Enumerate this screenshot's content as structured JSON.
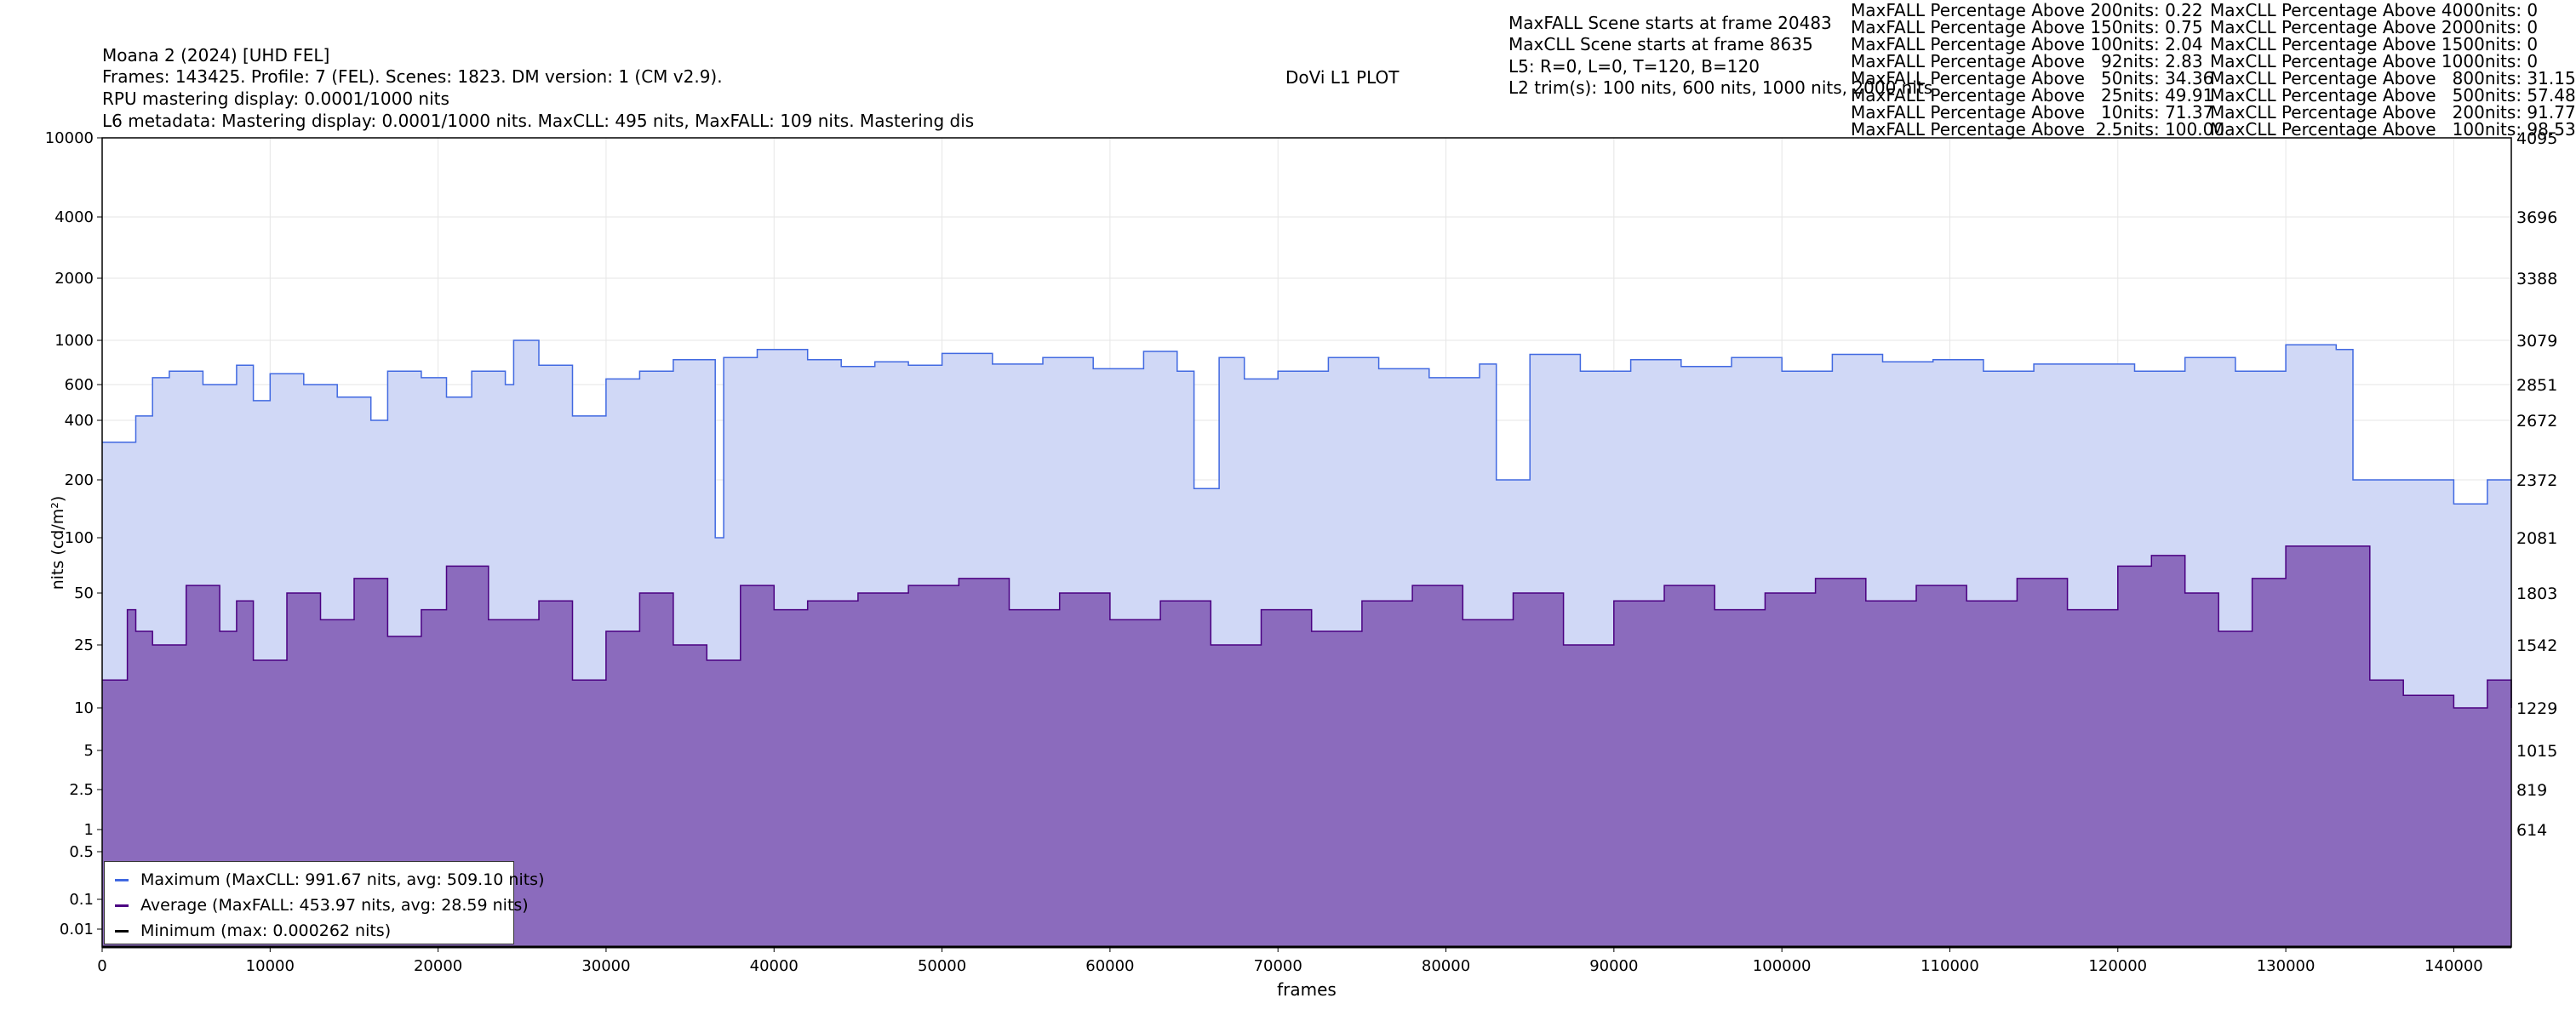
{
  "header": {
    "title": "Moana 2 (2024) [UHD FEL]",
    "info": "Frames: 143425. Profile: 7 (FEL). Scenes: 1823. DM version: 1 (CM v2.9).",
    "rpu_mastering": "RPU mastering display: 0.0001/1000 nits",
    "l6_metadata": "L6 metadata: Mastering display: 0.0001/1000 nits. MaxCLL: 495 nits, MaxFALL: 109 nits. Mastering dis",
    "plot_title": "DoVi L1 PLOT",
    "maxfall_scene": "MaxFALL Scene starts at frame 20483",
    "maxcll_scene": "MaxCLL Scene starts at frame 8635",
    "l5": "L5: R=0, L=0, T=120, B=120",
    "l2_trims": "L2 trim(s): 100 nits, 600 nits, 1000 nits, 2000 nits"
  },
  "maxfall_percentages": [
    "MaxFALL Percentage Above 200nits: 0.22",
    "MaxFALL Percentage Above 150nits: 0.75",
    "MaxFALL Percentage Above 100nits: 2.04",
    "MaxFALL Percentage Above   92nits: 2.83",
    "MaxFALL Percentage Above   50nits: 34.36",
    "MaxFALL Percentage Above   25nits: 49.91",
    "MaxFALL Percentage Above   10nits: 71.37",
    "MaxFALL Percentage Above  2.5nits: 100.00"
  ],
  "maxcll_percentages": [
    "MaxCLL Percentage Above 4000nits: 0",
    "MaxCLL Percentage Above 2000nits: 0",
    "MaxCLL Percentage Above 1500nits: 0",
    "MaxCLL Percentage Above 1000nits: 0",
    "MaxCLL Percentage Above   800nits: 31.15",
    "MaxCLL Percentage Above   500nits: 57.48",
    "MaxCLL Percentage Above   200nits: 91.77",
    "MaxCLL Percentage Above   100nits: 98.53"
  ],
  "legend": {
    "maximum": "Maximum (MaxCLL: 991.67 nits, avg: 509.10 nits)",
    "average": "Average (MaxFALL: 453.97 nits, avg: 28.59 nits)",
    "minimum": "Minimum (max: 0.000262 nits)"
  },
  "colors": {
    "maximum_line": "#4169e1",
    "maximum_fill": "#d0d8f6",
    "average_line": "#4b0082",
    "average_fill": "#8b6bbd",
    "minimum_line": "#000000",
    "grid": "#e6e6e6"
  },
  "chart_data": {
    "type": "area",
    "title": "DoVi L1 PLOT",
    "xlabel": "frames",
    "ylabel": "nits (cd/m²)",
    "xlim": [
      0,
      143425
    ],
    "ylim": [
      0.005,
      10000
    ],
    "y_scale": "PQ (perceptual quantizer)",
    "grid": true,
    "legend_position": "lower-left",
    "x_ticks": [
      0,
      10000,
      20000,
      30000,
      40000,
      50000,
      60000,
      70000,
      80000,
      90000,
      100000,
      110000,
      120000,
      130000,
      140000
    ],
    "y_ticks": [
      {
        "nits": 10000,
        "label": "10000",
        "pq_code": "4095"
      },
      {
        "nits": 4000,
        "label": "4000",
        "pq_code": "3696"
      },
      {
        "nits": 2000,
        "label": "2000",
        "pq_code": "3388"
      },
      {
        "nits": 1000,
        "label": "1000",
        "pq_code": "3079"
      },
      {
        "nits": 600,
        "label": "600",
        "pq_code": "2851"
      },
      {
        "nits": 400,
        "label": "400",
        "pq_code": "2672"
      },
      {
        "nits": 200,
        "label": "200",
        "pq_code": "2372"
      },
      {
        "nits": 100,
        "label": "100",
        "pq_code": "2081"
      },
      {
        "nits": 50,
        "label": "50",
        "pq_code": "1803"
      },
      {
        "nits": 25,
        "label": "25",
        "pq_code": "1542"
      },
      {
        "nits": 10,
        "label": "10",
        "pq_code": "1229"
      },
      {
        "nits": 5,
        "label": "5",
        "pq_code": "1015"
      },
      {
        "nits": 2.5,
        "label": "2.5",
        "pq_code": "819"
      },
      {
        "nits": 1,
        "label": "1",
        "pq_code": "614"
      },
      {
        "nits": 0.5,
        "label": "0.5",
        "pq_code": ""
      },
      {
        "nits": 0.1,
        "label": "0.1",
        "pq_code": ""
      },
      {
        "nits": 0.01,
        "label": "0.01",
        "pq_code": ""
      }
    ],
    "series": [
      {
        "name": "Maximum (MaxCLL: 991.67 nits, avg: 509.10 nits)",
        "x": [
          0,
          2000,
          3000,
          4000,
          6000,
          8000,
          9000,
          10000,
          12000,
          14000,
          16000,
          17000,
          19000,
          20500,
          22000,
          24000,
          24500,
          26000,
          28000,
          30000,
          32000,
          34000,
          36500,
          37000,
          39000,
          42000,
          44000,
          46000,
          48000,
          50000,
          53000,
          56000,
          59000,
          62000,
          64000,
          65000,
          66500,
          68000,
          70000,
          73000,
          76000,
          79000,
          82000,
          83000,
          85000,
          88000,
          91000,
          94000,
          97000,
          100000,
          103000,
          106000,
          109000,
          112000,
          115000,
          118000,
          121000,
          124000,
          127000,
          130000,
          133000,
          134000,
          136000,
          140000,
          142000,
          143425
        ],
        "y": [
          310,
          420,
          650,
          700,
          600,
          750,
          500,
          680,
          600,
          520,
          400,
          700,
          650,
          520,
          700,
          600,
          1000,
          750,
          420,
          640,
          700,
          800,
          100,
          820,
          900,
          800,
          740,
          780,
          750,
          860,
          760,
          820,
          720,
          880,
          700,
          180,
          820,
          640,
          700,
          820,
          720,
          650,
          760,
          200,
          850,
          700,
          800,
          740,
          820,
          700,
          850,
          780,
          800,
          700,
          760,
          760,
          700,
          820,
          700,
          950,
          900,
          200,
          200,
          150,
          200,
          200
        ]
      },
      {
        "name": "Average (MaxFALL: 453.97 nits, avg: 28.59 nits)",
        "x": [
          0,
          1500,
          2000,
          3000,
          5000,
          7000,
          8000,
          9000,
          11000,
          13000,
          15000,
          17000,
          19000,
          20500,
          23000,
          26000,
          28000,
          30000,
          32000,
          34000,
          36000,
          38000,
          40000,
          42000,
          45000,
          48000,
          51000,
          54000,
          57000,
          60000,
          63000,
          66000,
          69000,
          72000,
          75000,
          78000,
          81000,
          84000,
          87000,
          90000,
          93000,
          96000,
          99000,
          102000,
          105000,
          108000,
          111000,
          114000,
          117000,
          120000,
          122000,
          124000,
          126000,
          128000,
          130000,
          133000,
          135000,
          137000,
          140000,
          142000,
          143425
        ],
        "y": [
          15,
          40,
          30,
          25,
          55,
          30,
          45,
          20,
          50,
          35,
          60,
          28,
          40,
          70,
          35,
          45,
          15,
          30,
          50,
          25,
          20,
          55,
          40,
          45,
          50,
          55,
          60,
          40,
          50,
          35,
          45,
          25,
          40,
          30,
          45,
          55,
          35,
          50,
          25,
          45,
          55,
          40,
          50,
          60,
          45,
          55,
          45,
          60,
          40,
          70,
          80,
          50,
          30,
          60,
          90,
          90,
          15,
          12,
          10,
          15,
          10
        ]
      },
      {
        "name": "Minimum (max: 0.000262 nits)",
        "x": [
          0,
          143425
        ],
        "y": [
          0.0001,
          0.0001
        ]
      }
    ]
  }
}
